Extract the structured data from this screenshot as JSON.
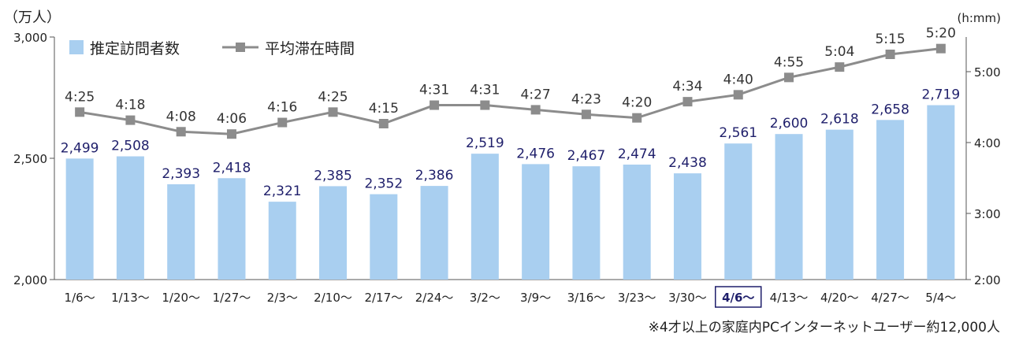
{
  "chart_data": {
    "type": "bar",
    "categories": [
      "1/6〜",
      "1/13〜",
      "1/20〜",
      "1/27〜",
      "2/3〜",
      "2/10〜",
      "2/17〜",
      "2/24〜",
      "3/2〜",
      "3/9〜",
      "3/16〜",
      "3/23〜",
      "3/30〜",
      "4/6〜",
      "4/13〜",
      "4/20〜",
      "4/27〜",
      "5/4〜"
    ],
    "highlighted_category": "4/6〜",
    "series": [
      {
        "name": "推定訪問者数",
        "type": "bar",
        "axis": "left",
        "color": "#a9cff0",
        "values": [
          2499,
          2508,
          2393,
          2418,
          2321,
          2385,
          2352,
          2386,
          2519,
          2476,
          2467,
          2474,
          2438,
          2561,
          2600,
          2618,
          2658,
          2719
        ],
        "labels": [
          "2,499",
          "2,508",
          "2,393",
          "2,418",
          "2,321",
          "2,385",
          "2,352",
          "2,386",
          "2,519",
          "2,476",
          "2,467",
          "2,474",
          "2,438",
          "2,561",
          "2,600",
          "2,618",
          "2,658",
          "2,719"
        ]
      },
      {
        "name": "平均滞在時間",
        "type": "line",
        "axis": "right",
        "color": "#8c8c8c",
        "values": [
          "4:25",
          "4:18",
          "4:08",
          "4:06",
          "4:16",
          "4:25",
          "4:15",
          "4:31",
          "4:31",
          "4:27",
          "4:23",
          "4:20",
          "4:34",
          "4:40",
          "4:55",
          "5:04",
          "5:15",
          "5:20"
        ]
      }
    ],
    "left_axis": {
      "unit": "（万人）",
      "ticks": [
        "2,000",
        "2,500",
        "3,000"
      ],
      "range": [
        2000,
        3000
      ]
    },
    "right_axis": {
      "unit": "(h:mm)",
      "ticks": [
        "2:00",
        "3:00",
        "4:00",
        "5:00"
      ],
      "range": [
        "2:00",
        "5:40"
      ]
    },
    "bar_label_color": "#1f1f6b",
    "line_label_color": "#333333",
    "legend_position": "top-left",
    "grid": false
  },
  "footnote": "※4才以上の家庭内PCインターネットユーザー約12,000人"
}
